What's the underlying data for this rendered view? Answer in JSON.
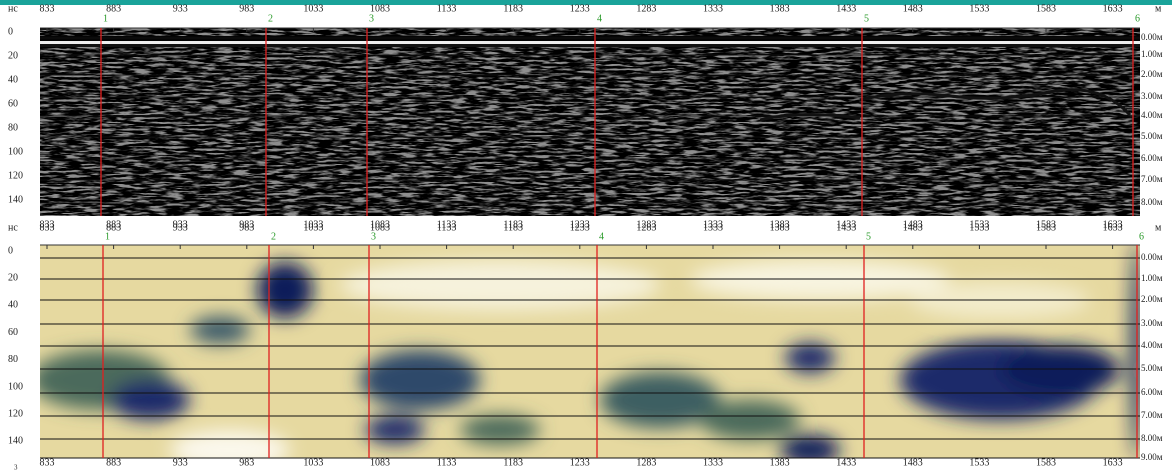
{
  "top_panel": {
    "y_unit": "нс",
    "x_unit": "м",
    "x_labels": [
      "833",
      "883",
      "933",
      "983",
      "1033",
      "1083",
      "1133",
      "1183",
      "1233",
      "1283",
      "1333",
      "1383",
      "1433",
      "1483",
      "1533",
      "1583",
      "1633"
    ],
    "y_labels": [
      "0",
      "20",
      "40",
      "60",
      "80",
      "100",
      "120",
      "140"
    ],
    "depth_labels": [
      "0.00м",
      "1.00м",
      "2.00м",
      "3.00м",
      "4.00м",
      "5.00м",
      "6.00м",
      "7.00м",
      "8.00м"
    ],
    "markers": [
      "1",
      "2",
      "3",
      "4",
      "5",
      "6"
    ]
  },
  "bottom_panel": {
    "y_unit": "нс",
    "x_unit": "м",
    "x_labels": [
      "833",
      "883",
      "933",
      "983",
      "1033",
      "1083",
      "1133",
      "1183",
      "1233",
      "1283",
      "1333",
      "1383",
      "1433",
      "1483",
      "1533",
      "1583",
      "1633"
    ],
    "y_labels": [
      "0",
      "20",
      "40",
      "60",
      "80",
      "100",
      "120",
      "140"
    ],
    "depth_labels": [
      "0.00м",
      "1.00м",
      "2.00м",
      "3.00м",
      "4.00м",
      "5.00м",
      "6.00м",
      "7.00м",
      "8.00м",
      "9.00м"
    ],
    "markers": [
      "1",
      "2",
      "3",
      "4",
      "5",
      "6"
    ]
  },
  "footer": "3"
}
